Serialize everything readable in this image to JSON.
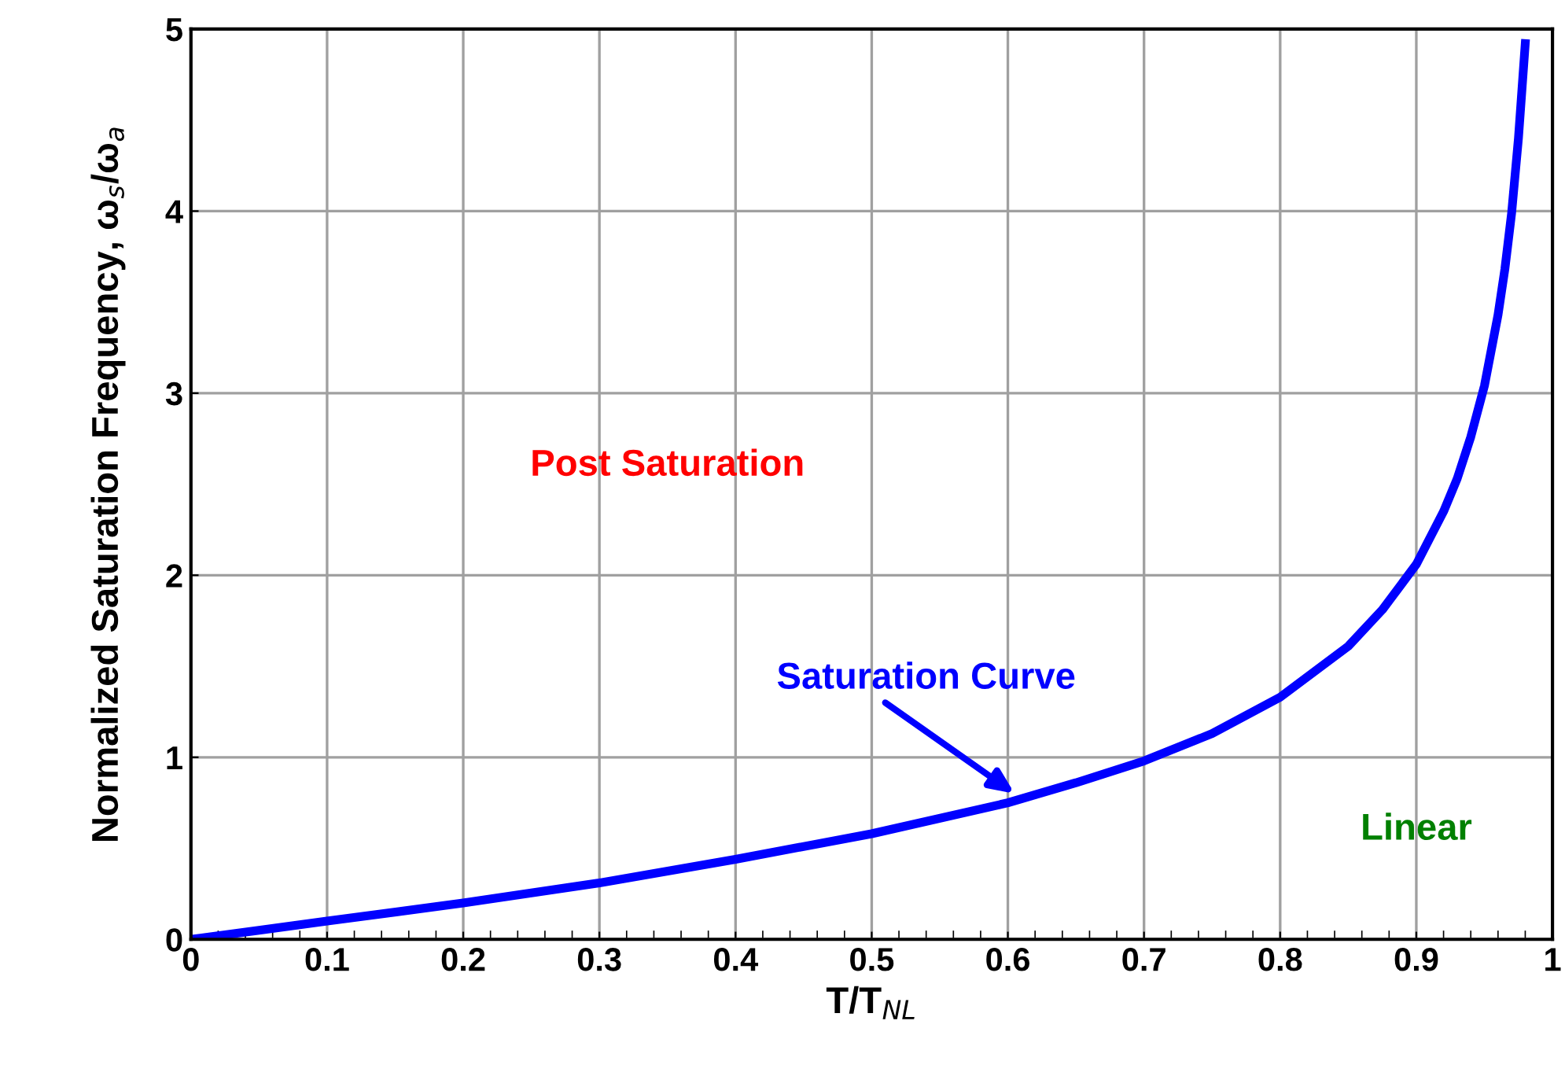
{
  "chart_data": {
    "type": "line",
    "xlabel": "T/T$_{NL}$",
    "ylabel": "Normalized Saturation Frequency, ω$_{s}$/ω$_{a}$",
    "x": [
      0,
      0.05,
      0.1,
      0.2,
      0.3,
      0.4,
      0.5,
      0.6,
      0.65,
      0.7,
      0.75,
      0.8,
      0.85,
      0.875,
      0.9,
      0.92,
      0.93,
      0.94,
      0.95,
      0.96,
      0.965,
      0.97,
      0.975,
      0.98
    ],
    "series": [
      {
        "color": "#0000ff",
        "values": [
          0,
          0.05,
          0.1,
          0.2,
          0.31,
          0.44,
          0.58,
          0.75,
          0.86,
          0.98,
          1.13,
          1.33,
          1.61,
          1.81,
          2.06,
          2.35,
          2.53,
          2.76,
          3.04,
          3.43,
          3.68,
          3.99,
          4.4,
          4.92
        ]
      }
    ],
    "xlim": [
      0,
      1
    ],
    "ylim": [
      0,
      5
    ],
    "xticks": [
      0,
      0.1,
      0.2,
      0.3,
      0.4,
      0.5,
      0.6,
      0.7,
      0.8,
      0.9,
      1
    ],
    "yticks": [
      0,
      1,
      2,
      3,
      4,
      5
    ],
    "grid": true,
    "legend": false,
    "marker": "none",
    "line_style": "solid",
    "annotations": [
      "Post Saturation",
      {
        "text": "Saturation Curve",
        "x": 0.605,
        "y": 0.8
      },
      "Linear"
    ]
  }
}
